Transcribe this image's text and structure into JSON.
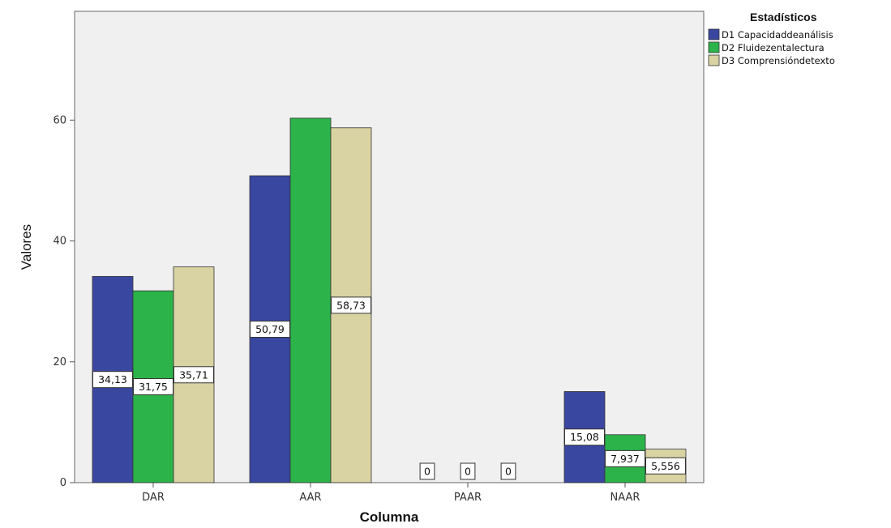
{
  "chart_data": {
    "type": "bar",
    "xlabel": "Columna",
    "ylabel": "Valores",
    "categories": [
      "DAR",
      "AAR",
      "PAAR",
      "NAAR"
    ],
    "ylim": [
      0,
      78
    ],
    "yticks": [
      0,
      20,
      40,
      60
    ],
    "grid": false,
    "legend_position": "top-right",
    "legend_title": "Estadísticos",
    "series": [
      {
        "name": "D1 Capacidaddeanálisis",
        "color": "#3a47a0",
        "values": [
          34.13,
          50.79,
          0,
          15.08
        ],
        "labels": [
          "34,13",
          "50,79",
          "0",
          "15,08"
        ]
      },
      {
        "name": "D2 Fluidezentalectura",
        "color": "#2cb34a",
        "values": [
          31.75,
          60.32,
          0,
          7.937
        ],
        "labels": [
          "31,75",
          null,
          "0",
          "7,937"
        ]
      },
      {
        "name": "D3 Comprensióndetexto",
        "color": "#d9d3a3",
        "values": [
          35.71,
          58.73,
          0,
          5.556
        ],
        "labels": [
          "35,71",
          "58,73",
          "0",
          "5,556"
        ]
      }
    ]
  }
}
